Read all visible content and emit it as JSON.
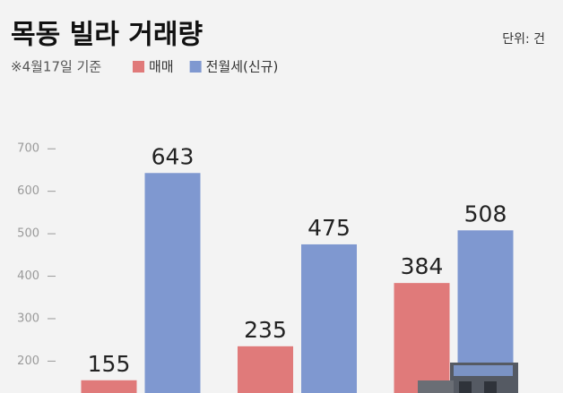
{
  "chart_data": {
    "type": "bar",
    "title": "목동 빌라 거래량",
    "unit": "단위: 건",
    "note": "※4월17일 기준",
    "categories": [
      null,
      null,
      null
    ],
    "series": [
      {
        "name": "매매",
        "color": "#e07a7a",
        "values": [
          155,
          235,
          384
        ]
      },
      {
        "name": "전월세(신규)",
        "color": "#7f98d0",
        "values": [
          643,
          475,
          508
        ]
      }
    ],
    "ylim": [
      125,
      750
    ],
    "yticks": [
      200,
      300,
      400,
      500,
      600,
      700
    ],
    "grid": false
  }
}
